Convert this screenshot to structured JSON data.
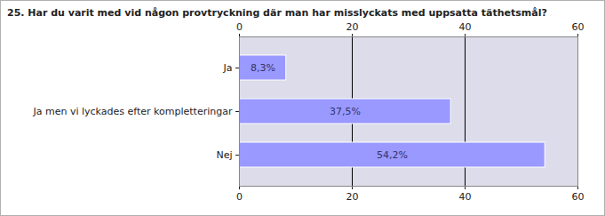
{
  "chart_data": {
    "type": "bar",
    "orientation": "horizontal",
    "title": "25. Har du varit med vid någon provtryckning där man har misslyckats med uppsatta täthetsmål?",
    "categories": [
      "Ja",
      "Ja men vi lyckades efter kompletteringar",
      "Nej"
    ],
    "values": [
      8.3,
      37.5,
      54.2
    ],
    "value_labels": [
      "8,3%",
      "37,5%",
      "54,2%"
    ],
    "data_labels": true,
    "color": "#9999ff",
    "xlim": [
      0,
      60
    ],
    "xticks": [
      0,
      20,
      40,
      60
    ],
    "grid": true
  }
}
